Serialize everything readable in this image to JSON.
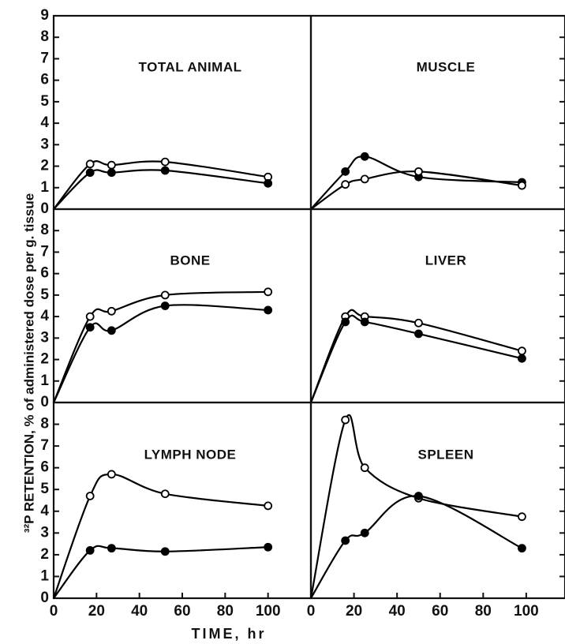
{
  "y_label": "³²P RETENTION, % of administered dose per g. tissue",
  "x_label": "TIME, hr",
  "chart_data": [
    {
      "type": "line",
      "title": "TOTAL ANIMAL",
      "xlim": [
        0,
        120
      ],
      "ylim": [
        0,
        9
      ],
      "yticks": [
        0,
        1,
        2,
        3,
        4,
        5,
        6,
        7,
        8,
        9
      ],
      "y_tick_labels": true,
      "series": [
        {
          "color": "#000",
          "marker": "open",
          "x": [
            0,
            17,
            27,
            52,
            100
          ],
          "values": [
            0,
            2.1,
            2.05,
            2.2,
            1.5
          ]
        },
        {
          "color": "#000",
          "marker": "filled",
          "x": [
            0,
            17,
            27,
            52,
            100
          ],
          "values": [
            0,
            1.7,
            1.7,
            1.8,
            1.2
          ]
        }
      ]
    },
    {
      "type": "line",
      "title": "MUSCLE",
      "xlim": [
        0,
        118
      ],
      "ylim": [
        0,
        9
      ],
      "yticks": [
        0,
        1,
        2,
        3,
        4,
        5,
        6,
        7,
        8,
        9
      ],
      "y_tick_labels": false,
      "series": [
        {
          "color": "#000",
          "marker": "filled",
          "x": [
            0,
            16,
            25,
            50,
            98
          ],
          "values": [
            0,
            1.75,
            2.45,
            1.5,
            1.25
          ]
        },
        {
          "color": "#000",
          "marker": "open",
          "x": [
            0,
            16,
            25,
            50,
            98
          ],
          "values": [
            0,
            1.15,
            1.4,
            1.75,
            1.1
          ]
        }
      ]
    },
    {
      "type": "line",
      "title": "BONE",
      "xlim": [
        0,
        120
      ],
      "ylim": [
        0,
        9
      ],
      "yticks": [
        0,
        1,
        2,
        3,
        4,
        5,
        6,
        7,
        8
      ],
      "y_tick_labels": true,
      "series": [
        {
          "color": "#000",
          "marker": "open",
          "x": [
            0,
            17,
            27,
            52,
            100
          ],
          "values": [
            0,
            4.0,
            4.25,
            5.0,
            5.15
          ]
        },
        {
          "color": "#000",
          "marker": "filled",
          "x": [
            0,
            17,
            27,
            52,
            100
          ],
          "values": [
            0,
            3.5,
            3.35,
            4.5,
            4.3
          ]
        }
      ]
    },
    {
      "type": "line",
      "title": "LIVER",
      "xlim": [
        0,
        118
      ],
      "ylim": [
        0,
        9
      ],
      "yticks": [
        0,
        1,
        2,
        3,
        4,
        5,
        6,
        7,
        8
      ],
      "y_tick_labels": false,
      "series": [
        {
          "color": "#000",
          "marker": "open",
          "x": [
            0,
            16,
            25,
            50,
            98
          ],
          "values": [
            0,
            4.0,
            4.0,
            3.7,
            2.4
          ]
        },
        {
          "color": "#000",
          "marker": "filled",
          "x": [
            0,
            16,
            25,
            50,
            98
          ],
          "values": [
            0,
            3.75,
            3.75,
            3.2,
            2.05
          ]
        }
      ]
    },
    {
      "type": "line",
      "title": "LYMPH NODE",
      "xlim": [
        0,
        120
      ],
      "ylim": [
        0,
        9
      ],
      "yticks": [
        0,
        1,
        2,
        3,
        4,
        5,
        6,
        7,
        8
      ],
      "y_tick_labels": true,
      "xticks": [
        0,
        20,
        40,
        60,
        80,
        100
      ],
      "series": [
        {
          "color": "#000",
          "marker": "open",
          "x": [
            0,
            17,
            27,
            52,
            100
          ],
          "values": [
            0,
            4.7,
            5.7,
            4.8,
            4.25
          ]
        },
        {
          "color": "#000",
          "marker": "filled",
          "x": [
            0,
            17,
            27,
            52,
            100
          ],
          "values": [
            0,
            2.2,
            2.3,
            2.15,
            2.35
          ]
        }
      ]
    },
    {
      "type": "line",
      "title": "SPLEEN",
      "xlim": [
        0,
        118
      ],
      "ylim": [
        0,
        9
      ],
      "yticks": [
        0,
        1,
        2,
        3,
        4,
        5,
        6,
        7,
        8
      ],
      "y_tick_labels": false,
      "xticks": [
        0,
        20,
        40,
        60,
        80,
        100
      ],
      "series": [
        {
          "color": "#000",
          "marker": "open",
          "x": [
            0,
            16,
            25,
            50,
            98
          ],
          "values": [
            0,
            8.2,
            6.0,
            4.6,
            3.75
          ]
        },
        {
          "color": "#000",
          "marker": "filled",
          "x": [
            0,
            16,
            25,
            50,
            98
          ],
          "values": [
            0,
            2.65,
            3.0,
            4.7,
            2.3
          ]
        }
      ]
    }
  ]
}
